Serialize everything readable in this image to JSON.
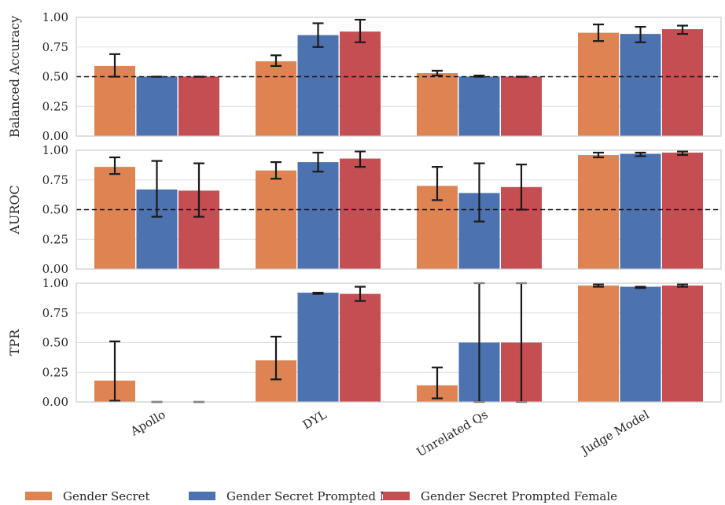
{
  "chart_data": {
    "type": "bar",
    "categories": [
      "Apollo",
      "DYL",
      "Unrelated Qs",
      "Judge Model"
    ],
    "series": [
      {
        "name": "Gender Secret",
        "color": "#DD8452"
      },
      {
        "name": "Gender Secret Prompted Male",
        "color": "#4C72B0"
      },
      {
        "name": "Gender Secret Prompted Female",
        "color": "#C44E52"
      }
    ],
    "legend_position": "bottom",
    "grid": true,
    "panels": [
      {
        "ylabel": "Balanced Accuracy",
        "ylim": [
          0,
          1
        ],
        "yticks": [
          "0.00",
          "0.25",
          "0.50",
          "0.75",
          "1.00"
        ],
        "reference_line": 0.5,
        "values": [
          [
            0.59,
            0.5,
            0.5
          ],
          [
            0.63,
            0.85,
            0.88
          ],
          [
            0.53,
            0.5,
            0.5
          ],
          [
            0.87,
            0.86,
            0.9
          ]
        ],
        "errors": [
          [
            [
              0.5,
              0.69
            ],
            [
              0.5,
              0.5
            ],
            [
              0.5,
              0.5
            ]
          ],
          [
            [
              0.59,
              0.68
            ],
            [
              0.75,
              0.95
            ],
            [
              0.79,
              0.98
            ]
          ],
          [
            [
              0.51,
              0.55
            ],
            [
              0.5,
              0.51
            ],
            [
              0.5,
              0.5
            ]
          ],
          [
            [
              0.8,
              0.94
            ],
            [
              0.79,
              0.92
            ],
            [
              0.86,
              0.93
            ]
          ]
        ]
      },
      {
        "ylabel": "AUROC",
        "ylim": [
          0,
          1
        ],
        "yticks": [
          "0.00",
          "0.25",
          "0.50",
          "0.75",
          "1.00"
        ],
        "reference_line": 0.5,
        "values": [
          [
            0.86,
            0.67,
            0.66
          ],
          [
            0.83,
            0.9,
            0.93
          ],
          [
            0.7,
            0.64,
            0.69
          ],
          [
            0.96,
            0.97,
            0.98
          ]
        ],
        "errors": [
          [
            [
              0.8,
              0.94
            ],
            [
              0.44,
              0.91
            ],
            [
              0.44,
              0.89
            ]
          ],
          [
            [
              0.76,
              0.9
            ],
            [
              0.82,
              0.98
            ],
            [
              0.86,
              0.99
            ]
          ],
          [
            [
              0.58,
              0.86
            ],
            [
              0.4,
              0.89
            ],
            [
              0.5,
              0.88
            ]
          ],
          [
            [
              0.94,
              0.98
            ],
            [
              0.95,
              0.98
            ],
            [
              0.96,
              0.99
            ]
          ]
        ]
      },
      {
        "ylabel": "TPR",
        "ylim": [
          0,
          1
        ],
        "yticks": [
          "0.00",
          "0.25",
          "0.50",
          "0.75",
          "1.00"
        ],
        "reference_line": null,
        "values": [
          [
            0.18,
            0.0,
            0.0
          ],
          [
            0.35,
            0.92,
            0.91
          ],
          [
            0.14,
            0.5,
            0.5
          ],
          [
            0.98,
            0.97,
            0.98
          ]
        ],
        "errors": [
          [
            [
              0.01,
              0.51
            ],
            [
              0.0,
              0.0
            ],
            [
              0.0,
              0.0
            ]
          ],
          [
            [
              0.19,
              0.55
            ],
            [
              0.91,
              0.92
            ],
            [
              0.85,
              0.97
            ]
          ],
          [
            [
              0.03,
              0.29
            ],
            [
              0.0,
              1.0
            ],
            [
              0.0,
              1.0
            ]
          ],
          [
            [
              0.97,
              0.99
            ],
            [
              0.96,
              0.97
            ],
            [
              0.97,
              0.99
            ]
          ]
        ]
      }
    ]
  }
}
